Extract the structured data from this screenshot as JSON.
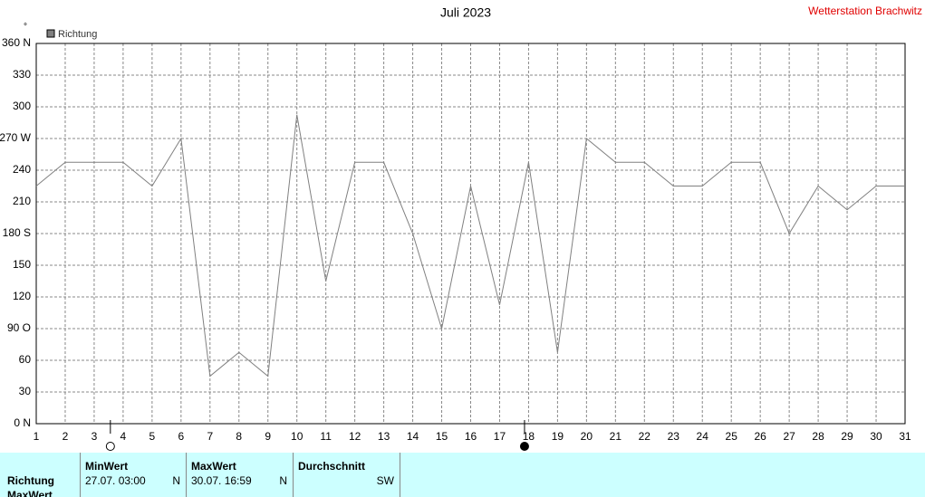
{
  "chart_data": {
    "type": "line",
    "title": "Juli 2023",
    "station": "Wetterstation Brachwitz",
    "unit": "°",
    "x": [
      1,
      2,
      3,
      4,
      5,
      6,
      7,
      8,
      9,
      10,
      11,
      12,
      13,
      14,
      15,
      16,
      17,
      18,
      19,
      20,
      21,
      22,
      23,
      24,
      25,
      26,
      27,
      28,
      29,
      30,
      31
    ],
    "series": [
      {
        "name": "Richtung",
        "color": "#808080",
        "values": [
          225,
          247.5,
          247.5,
          247.5,
          225,
          270,
          45,
          67.5,
          45,
          292.5,
          135,
          247.5,
          247.5,
          180,
          90,
          225,
          112.5,
          247.5,
          67.5,
          270,
          247.5,
          247.5,
          225,
          225,
          247.5,
          247.5,
          180,
          225,
          202.5,
          225,
          225
        ]
      }
    ],
    "xlim": [
      1,
      31
    ],
    "xticks": [
      1,
      2,
      3,
      4,
      5,
      6,
      7,
      8,
      9,
      10,
      11,
      12,
      13,
      14,
      15,
      16,
      17,
      18,
      19,
      20,
      21,
      22,
      23,
      24,
      25,
      26,
      27,
      28,
      29,
      30,
      31
    ],
    "ylim": [
      0,
      360
    ],
    "yticks": [
      {
        "value": 0,
        "label": "0 N"
      },
      30,
      60,
      {
        "value": 90,
        "label": "90 O"
      },
      120,
      150,
      {
        "value": 180,
        "label": "180 S"
      },
      210,
      240,
      {
        "value": 270,
        "label": "270 W"
      },
      300,
      330,
      {
        "value": 360,
        "label": "360 N"
      }
    ],
    "grid": true,
    "legend": "top-left",
    "moon_markers": [
      {
        "x": 3.56,
        "fill": "none"
      },
      {
        "x": 17.86,
        "fill": "#000000"
      }
    ]
  },
  "table": {
    "row_labels": [
      "Richtung",
      "MaxWert"
    ],
    "columns": [
      {
        "header": "MinWert",
        "time": "27.07.  03:00",
        "dir": "N"
      },
      {
        "header": "MaxWert",
        "time": "30.07.  16:59",
        "dir": "N"
      },
      {
        "header": "Durchschnitt",
        "time": "",
        "dir": "SW"
      }
    ]
  }
}
